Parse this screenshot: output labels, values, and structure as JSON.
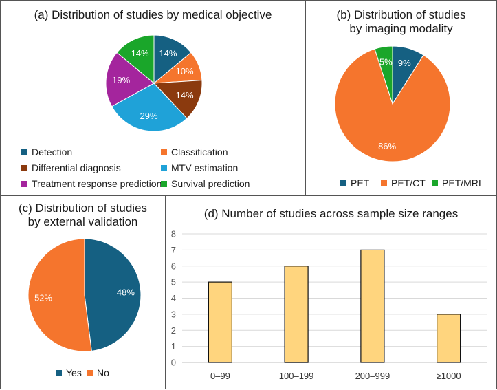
{
  "colors": {
    "blue": "#156082",
    "orange": "#f5752d",
    "darkred": "#8b3a0e",
    "cyan": "#1fa2d8",
    "magenta": "#a4259d",
    "green": "#1aa62a",
    "bar": "#ffd57e",
    "grid": "#d9d9d9"
  },
  "chart_data": [
    {
      "id": "a",
      "type": "pie",
      "title": "(a) Distribution of studies by medical objective",
      "categories": [
        "Detection",
        "Classification",
        "Differential diagnosis",
        "MTV estimation",
        "Treatment response prediction",
        "Survival prediction"
      ],
      "values": [
        14,
        10,
        14,
        29,
        19,
        14
      ],
      "labels": [
        "14%",
        "10%",
        "14%",
        "29%",
        "19%",
        "14%"
      ],
      "colors": [
        "#156082",
        "#f5752d",
        "#8b3a0e",
        "#1fa2d8",
        "#a4259d",
        "#1aa62a"
      ],
      "legend_position": "bottom"
    },
    {
      "id": "b",
      "type": "pie",
      "title": "(b) Distribution of studies by imaging modality",
      "title_lines": [
        "(b) Distribution of studies",
        "by imaging modality"
      ],
      "categories": [
        "PET",
        "PET/CT",
        "PET/MRI"
      ],
      "values": [
        9,
        86,
        5
      ],
      "labels": [
        "9%",
        "86%",
        "5%"
      ],
      "colors": [
        "#156082",
        "#f5752d",
        "#1aa62a"
      ],
      "legend_position": "bottom"
    },
    {
      "id": "c",
      "type": "pie",
      "title": "(c) Distribution of studies by external validation",
      "title_lines": [
        "(c) Distribution of studies",
        "by external validation"
      ],
      "categories": [
        "Yes",
        "No"
      ],
      "values": [
        48,
        52
      ],
      "labels": [
        "48%",
        "52%"
      ],
      "colors": [
        "#156082",
        "#f5752d"
      ],
      "legend_position": "bottom"
    },
    {
      "id": "d",
      "type": "bar",
      "title": "(d) Number of studies across sample size ranges",
      "categories": [
        "0–99",
        "100–199",
        "200–999",
        "≥1000"
      ],
      "values": [
        5,
        6,
        7,
        3
      ],
      "ylim": [
        0,
        8
      ],
      "yticks": [
        "0",
        "1",
        "2",
        "3",
        "4",
        "5",
        "6",
        "7",
        "8"
      ],
      "grid": true,
      "xlabel": "",
      "ylabel": ""
    }
  ]
}
